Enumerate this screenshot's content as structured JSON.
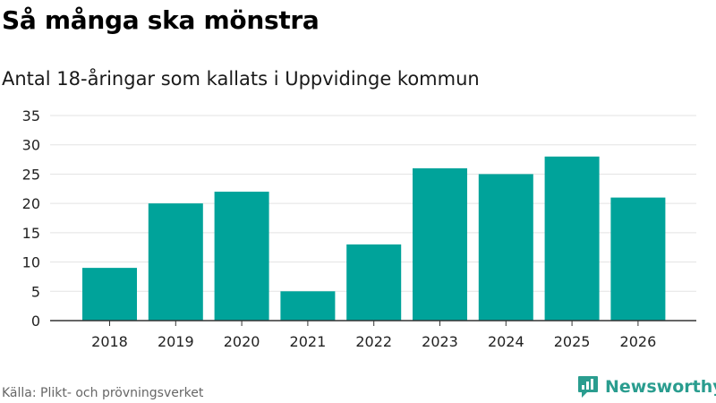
{
  "header": {
    "title": "Så många ska mönstra",
    "subtitle": "Antal 18-åringar som kallats i Uppvidinge kommun"
  },
  "footer": {
    "source": "Källa: Plikt- och prövningsverket",
    "brand": "Newsworthy"
  },
  "colors": {
    "bar": "#00a39a",
    "grid": "#e3e3e3",
    "axis": "#333333",
    "brand": "#2a9d8f"
  },
  "chart_data": {
    "type": "bar",
    "title": "Så många ska mönstra",
    "subtitle": "Antal 18-åringar som kallats i Uppvidinge kommun",
    "categories": [
      "2018",
      "2019",
      "2020",
      "2021",
      "2022",
      "2023",
      "2024",
      "2025",
      "2026"
    ],
    "values": [
      9,
      20,
      22,
      5,
      13,
      26,
      25,
      28,
      21
    ],
    "ylim": [
      0,
      35
    ],
    "yticks": [
      0,
      5,
      10,
      15,
      20,
      25,
      30,
      35
    ],
    "grid": true,
    "legend": "none"
  }
}
